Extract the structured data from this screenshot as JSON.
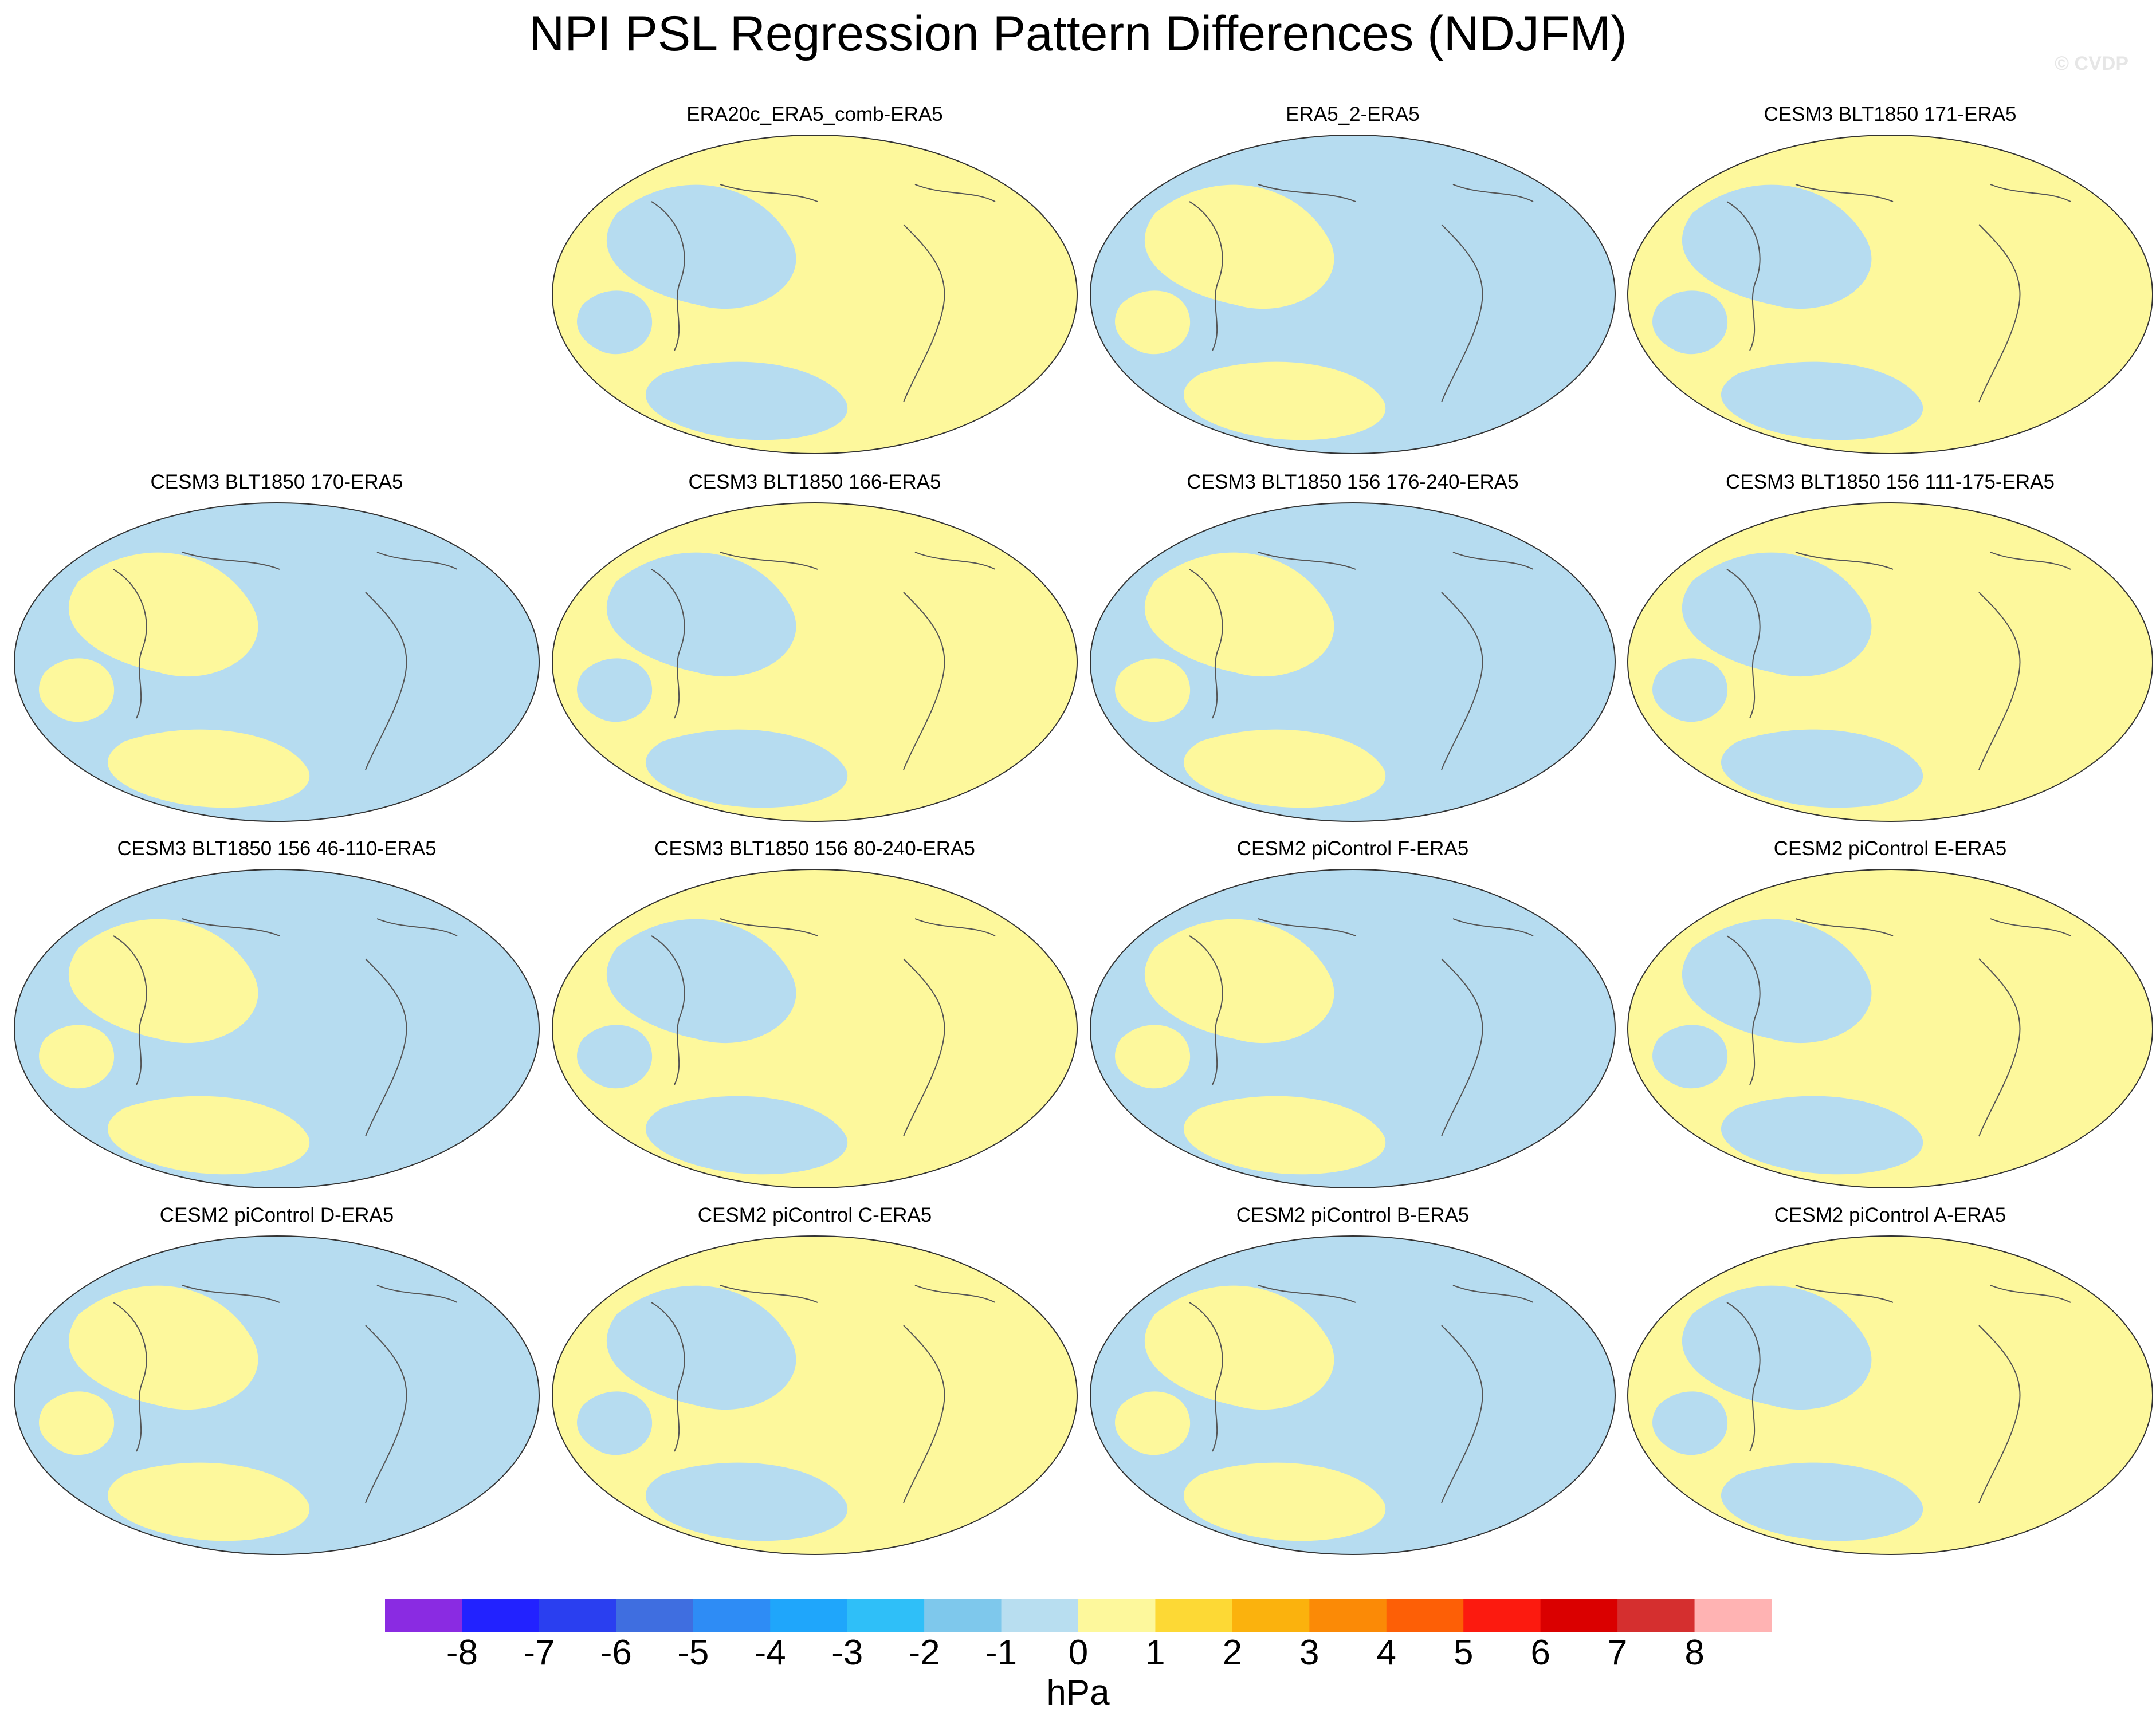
{
  "title": "NPI PSL Regression Pattern Differences (NDJFM)",
  "watermark": "© CVDP",
  "colors": {
    "map_negative": "#b6dcf0",
    "map_positive": "#fdf89c",
    "coastline": "#555555"
  },
  "panels": [
    {
      "title": "ERA20c_ERA5_comb-ERA5"
    },
    {
      "title": "ERA5_2-ERA5"
    },
    {
      "title": "CESM3 BLT1850 171-ERA5"
    },
    {
      "title": "CESM3 BLT1850 170-ERA5"
    },
    {
      "title": "CESM3 BLT1850 166-ERA5"
    },
    {
      "title": "CESM3 BLT1850 156 176-240-ERA5"
    },
    {
      "title": "CESM3 BLT1850 156 111-175-ERA5"
    },
    {
      "title": "CESM3 BLT1850 156 46-110-ERA5"
    },
    {
      "title": "CESM3 BLT1850 156 80-240-ERA5"
    },
    {
      "title": "CESM2 piControl F-ERA5"
    },
    {
      "title": "CESM2 piControl E-ERA5"
    },
    {
      "title": "CESM2 piControl D-ERA5"
    },
    {
      "title": "CESM2 piControl C-ERA5"
    },
    {
      "title": "CESM2 piControl B-ERA5"
    },
    {
      "title": "CESM2 piControl A-ERA5"
    }
  ],
  "colorbar": {
    "units": "hPa",
    "colors": [
      "#8a2be2",
      "#2222ff",
      "#2a3ff0",
      "#3f6ee0",
      "#2e8cf5",
      "#1fa6fb",
      "#2fbff8",
      "#7ec8ec",
      "#b8def0",
      "#fdf89c",
      "#fdd935",
      "#fbb20d",
      "#fb8a06",
      "#fd5f06",
      "#fc1a0f",
      "#da0000",
      "#d52f2f",
      "#ffb3b3"
    ],
    "labels": [
      "-8",
      "-7",
      "-6",
      "-5",
      "-4",
      "-3",
      "-2",
      "-1",
      "0",
      "1",
      "2",
      "3",
      "4",
      "5",
      "6",
      "7",
      "8"
    ]
  }
}
